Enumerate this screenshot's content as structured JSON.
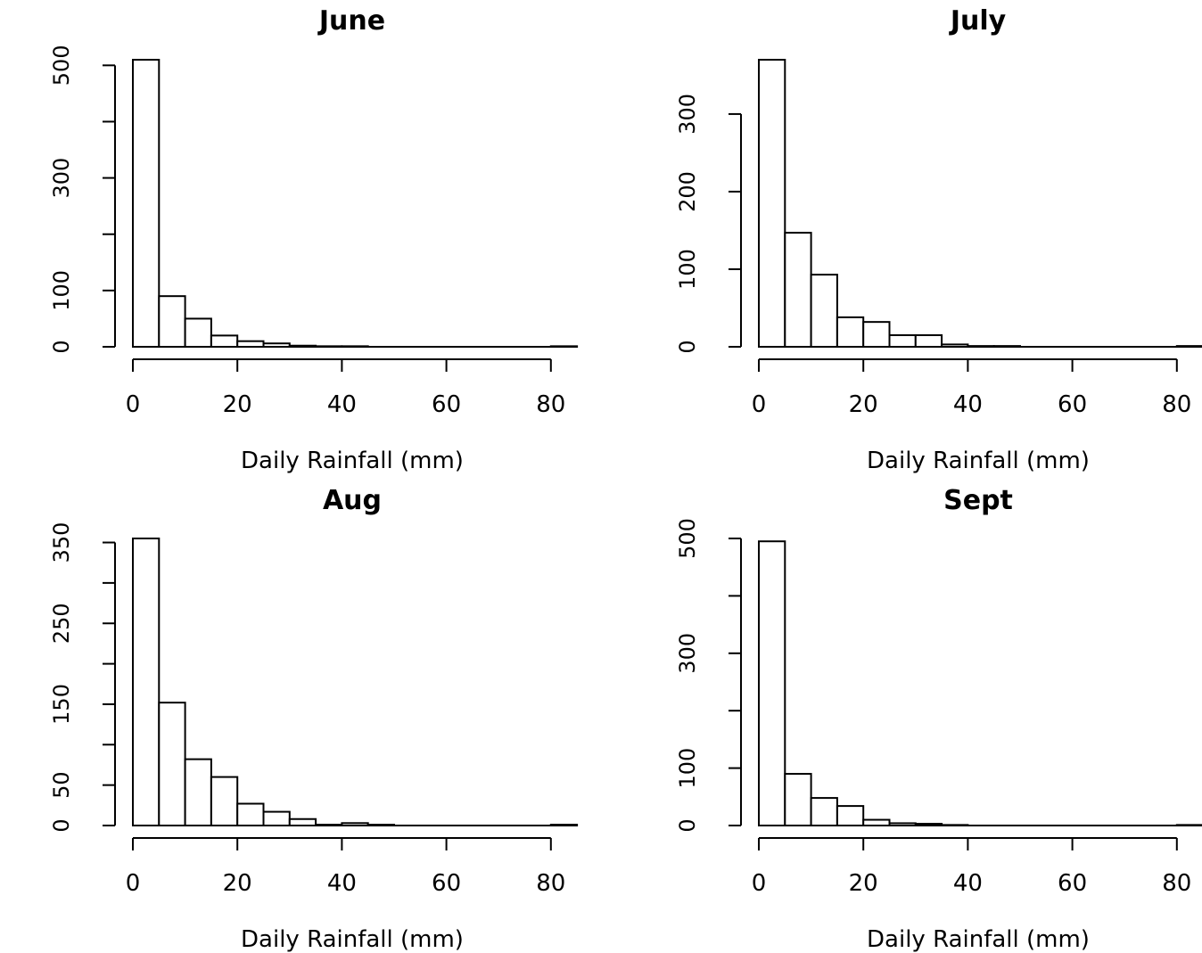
{
  "chart_data": [
    {
      "type": "bar",
      "title": "June",
      "xlabel": "Daily Rainfall (mm)",
      "ylabel": "",
      "bin_width": 5,
      "bins_start": [
        0,
        5,
        10,
        15,
        20,
        25,
        30,
        35,
        40,
        45,
        50,
        55,
        60,
        65,
        70,
        75,
        80
      ],
      "values": [
        510,
        90,
        50,
        20,
        10,
        6,
        2,
        1,
        1,
        0,
        0,
        0,
        0,
        0,
        0,
        0,
        1
      ],
      "xlim": [
        0,
        85
      ],
      "ylim": [
        0,
        510
      ],
      "xticks": [
        "0",
        "20",
        "40",
        "60",
        "80"
      ],
      "yticks": [
        "0",
        "100",
        "300",
        "500"
      ],
      "yticks_minor": [
        200,
        400
      ]
    },
    {
      "type": "bar",
      "title": "July",
      "xlabel": "Daily Rainfall (mm)",
      "ylabel": "",
      "bin_width": 5,
      "bins_start": [
        0,
        5,
        10,
        15,
        20,
        25,
        30,
        35,
        40,
        45,
        50,
        55,
        60,
        65,
        70,
        75,
        80
      ],
      "values": [
        370,
        147,
        93,
        38,
        32,
        15,
        15,
        3,
        1,
        1,
        0,
        0,
        0,
        0,
        0,
        0,
        1
      ],
      "xlim": [
        0,
        85
      ],
      "ylim": [
        0,
        370
      ],
      "xticks": [
        "0",
        "20",
        "40",
        "60",
        "80"
      ],
      "yticks": [
        "0",
        "100",
        "200",
        "300"
      ],
      "yticks_minor": []
    },
    {
      "type": "bar",
      "title": "Aug",
      "xlabel": "Daily Rainfall (mm)",
      "ylabel": "",
      "bin_width": 5,
      "bins_start": [
        0,
        5,
        10,
        15,
        20,
        25,
        30,
        35,
        40,
        45,
        50,
        55,
        60,
        65,
        70,
        75,
        80
      ],
      "values": [
        355,
        152,
        82,
        60,
        27,
        17,
        8,
        1,
        3,
        1,
        0,
        0,
        0,
        0,
        0,
        0,
        1
      ],
      "xlim": [
        0,
        85
      ],
      "ylim": [
        0,
        355
      ],
      "xticks": [
        "0",
        "20",
        "40",
        "60",
        "80"
      ],
      "yticks": [
        "0",
        "50",
        "150",
        "250",
        "350"
      ],
      "yticks_minor": [
        100,
        200,
        300
      ]
    },
    {
      "type": "bar",
      "title": "Sept",
      "xlabel": "Daily Rainfall (mm)",
      "ylabel": "",
      "bin_width": 5,
      "bins_start": [
        0,
        5,
        10,
        15,
        20,
        25,
        30,
        35,
        40,
        45,
        50,
        55,
        60,
        65,
        70,
        75,
        80
      ],
      "values": [
        495,
        90,
        48,
        34,
        10,
        4,
        3,
        1,
        0,
        0,
        0,
        0,
        0,
        0,
        0,
        0,
        1
      ],
      "xlim": [
        0,
        85
      ],
      "ylim": [
        0,
        500
      ],
      "xticks": [
        "0",
        "20",
        "40",
        "60",
        "80"
      ],
      "yticks": [
        "0",
        "100",
        "300",
        "500"
      ],
      "yticks_minor": [
        200,
        400
      ]
    }
  ]
}
